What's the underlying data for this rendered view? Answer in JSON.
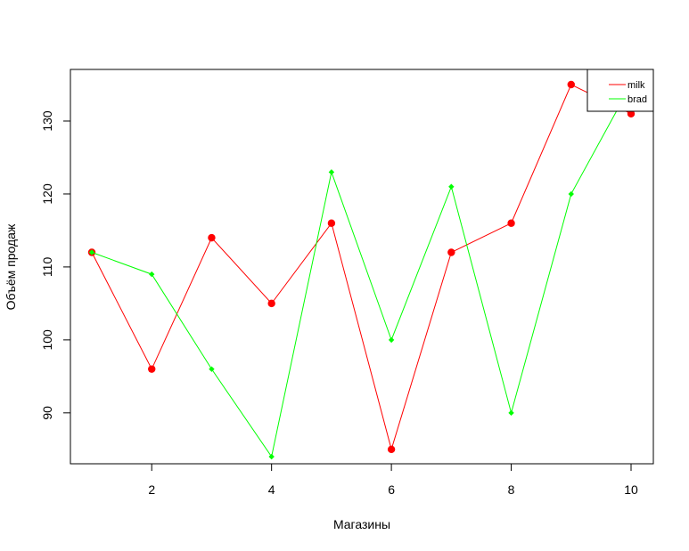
{
  "chart_data": {
    "type": "line",
    "title": "",
    "xlabel": "Магазины",
    "ylabel": "Объём продаж",
    "x": [
      1,
      2,
      3,
      4,
      5,
      6,
      7,
      8,
      9,
      10
    ],
    "xlim": [
      1,
      10
    ],
    "ylim": [
      84,
      135
    ],
    "x_ticks": [
      2,
      4,
      6,
      8,
      10
    ],
    "y_ticks": [
      90,
      100,
      110,
      120,
      130
    ],
    "grid": false,
    "legend_position": "top-right",
    "series": [
      {
        "name": "milk",
        "color": "#ff0000",
        "marker_color": "#ff0000",
        "marker": "circle",
        "values": [
          112,
          96,
          114,
          105,
          116,
          85,
          112,
          116,
          135,
          131
        ]
      },
      {
        "name": "brad",
        "color": "#00ff00",
        "marker_color": "#00ff00",
        "marker": "diamond",
        "values": [
          112,
          109,
          96,
          84,
          123,
          100,
          121,
          90,
          120,
          135
        ]
      }
    ]
  }
}
